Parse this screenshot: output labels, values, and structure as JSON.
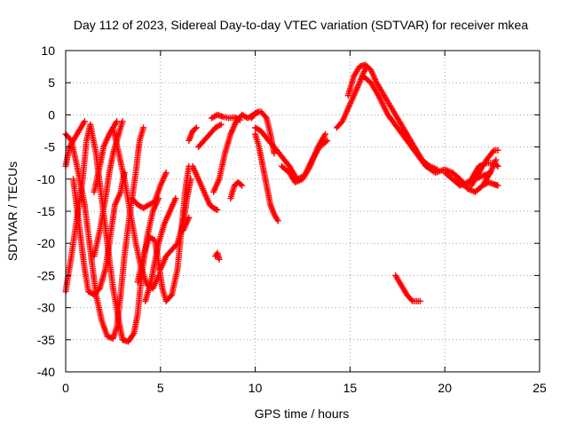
{
  "chart_data": {
    "type": "scatter",
    "title": "Day 112 of 2023, Sidereal Day-to-day VTEC variation (SDTVAR) for receiver mkea",
    "xlabel": "GPS time / hours",
    "ylabel": "SDTVAR / TECUs",
    "xlim": [
      0,
      25
    ],
    "ylim": [
      -40,
      10
    ],
    "xticks": [
      "0",
      "5",
      "10",
      "15",
      "20",
      "25"
    ],
    "yticks": [
      "10",
      "5",
      "0",
      "-5",
      "-10",
      "-15",
      "-20",
      "-25",
      "-30",
      "-35",
      "-40"
    ],
    "grid": true,
    "marker": "+",
    "color": "#ff0000",
    "series": [
      {
        "name": "s1",
        "points": [
          [
            0.0,
            -27.5
          ],
          [
            0.3,
            -22
          ],
          [
            0.6,
            -16
          ],
          [
            0.9,
            -10
          ],
          [
            1.1,
            -4
          ],
          [
            1.3,
            -1.5
          ],
          [
            1.6,
            -6
          ],
          [
            1.9,
            -13
          ],
          [
            2.2,
            -20
          ],
          [
            2.5,
            -27
          ],
          [
            2.8,
            -32
          ],
          [
            3.0,
            -35
          ]
        ]
      },
      {
        "name": "s2",
        "points": [
          [
            0.0,
            -3
          ],
          [
            0.3,
            -4
          ],
          [
            0.6,
            -8
          ],
          [
            1.0,
            -14
          ],
          [
            1.3,
            -21
          ],
          [
            1.6,
            -28
          ],
          [
            1.9,
            -32
          ],
          [
            2.2,
            -34.5
          ],
          [
            2.5,
            -34.8
          ],
          [
            2.7,
            -33
          ],
          [
            2.9,
            -28
          ],
          [
            3.1,
            -22
          ],
          [
            3.4,
            -15
          ],
          [
            3.7,
            -9
          ],
          [
            3.9,
            -4
          ],
          [
            4.1,
            -2
          ]
        ]
      },
      {
        "name": "s3",
        "points": [
          [
            0.0,
            -8
          ],
          [
            0.2,
            -5
          ],
          [
            0.5,
            -3.5
          ],
          [
            0.8,
            -2
          ],
          [
            1.0,
            -1
          ]
        ]
      },
      {
        "name": "s4",
        "points": [
          [
            0.4,
            -10
          ],
          [
            0.7,
            -17
          ],
          [
            1.0,
            -24
          ],
          [
            1.2,
            -27.5
          ],
          [
            1.5,
            -28
          ],
          [
            1.8,
            -27
          ],
          [
            2.1,
            -24
          ],
          [
            2.4,
            -18
          ],
          [
            2.6,
            -14
          ],
          [
            2.9,
            -12
          ],
          [
            3.1,
            -9
          ]
        ]
      },
      {
        "name": "s5",
        "points": [
          [
            1.5,
            -12
          ],
          [
            1.8,
            -8
          ],
          [
            2.0,
            -5
          ],
          [
            2.3,
            -3
          ],
          [
            2.7,
            -1
          ]
        ]
      },
      {
        "name": "s6",
        "points": [
          [
            1.5,
            -22
          ],
          [
            1.8,
            -18
          ],
          [
            2.1,
            -13
          ],
          [
            2.3,
            -9
          ],
          [
            2.5,
            -6
          ],
          [
            2.8,
            -3
          ],
          [
            3.0,
            -1
          ]
        ]
      },
      {
        "name": "s7",
        "points": [
          [
            3.0,
            -35
          ],
          [
            3.3,
            -35.3
          ],
          [
            3.6,
            -34
          ],
          [
            3.8,
            -31
          ],
          [
            4.0,
            -25
          ],
          [
            4.3,
            -19
          ],
          [
            4.6,
            -15
          ],
          [
            4.9,
            -13
          ]
        ]
      },
      {
        "name": "s8",
        "points": [
          [
            3.8,
            -26
          ],
          [
            4.1,
            -22
          ],
          [
            4.4,
            -19
          ],
          [
            4.7,
            -19.5
          ],
          [
            4.9,
            -23
          ],
          [
            5.1,
            -27
          ],
          [
            5.3,
            -29
          ],
          [
            5.6,
            -28
          ],
          [
            5.9,
            -24
          ],
          [
            6.1,
            -18
          ],
          [
            6.3,
            -12
          ],
          [
            6.5,
            -8
          ]
        ]
      },
      {
        "name": "s9",
        "points": [
          [
            2.5,
            -2
          ],
          [
            2.8,
            -6
          ],
          [
            3.1,
            -10
          ],
          [
            3.4,
            -15
          ],
          [
            3.7,
            -20
          ],
          [
            4.0,
            -24
          ],
          [
            4.3,
            -26.5
          ],
          [
            4.6,
            -27
          ],
          [
            4.9,
            -25
          ]
        ]
      },
      {
        "name": "s10",
        "points": [
          [
            3.5,
            -13
          ],
          [
            3.8,
            -14
          ],
          [
            4.1,
            -14.5
          ],
          [
            4.4,
            -14
          ],
          [
            4.7,
            -13.5
          ],
          [
            5.0,
            -11
          ],
          [
            5.3,
            -9
          ]
        ]
      },
      {
        "name": "s11",
        "points": [
          [
            4.2,
            -29
          ],
          [
            4.5,
            -26
          ],
          [
            4.7,
            -23
          ],
          [
            4.9,
            -20
          ],
          [
            5.2,
            -17
          ],
          [
            5.5,
            -15
          ],
          [
            5.8,
            -13
          ]
        ]
      },
      {
        "name": "s12",
        "points": [
          [
            5.0,
            -24
          ],
          [
            5.3,
            -22
          ],
          [
            5.6,
            -21
          ],
          [
            5.9,
            -20
          ],
          [
            6.2,
            -17
          ],
          [
            6.4,
            -13
          ],
          [
            6.6,
            -10
          ]
        ]
      },
      {
        "name": "s13",
        "points": [
          [
            6.5,
            -4
          ],
          [
            6.7,
            -2.5
          ],
          [
            6.9,
            -2
          ]
        ]
      },
      {
        "name": "s14",
        "points": [
          [
            6.2,
            -18
          ],
          [
            6.5,
            -16
          ]
        ]
      },
      {
        "name": "s15",
        "points": [
          [
            7.0,
            -5
          ],
          [
            7.3,
            -4
          ],
          [
            7.6,
            -3
          ],
          [
            7.9,
            -2
          ],
          [
            8.2,
            -1.5
          ]
        ]
      },
      {
        "name": "s16",
        "points": [
          [
            6.7,
            -8
          ],
          [
            7.0,
            -10
          ],
          [
            7.3,
            -12
          ],
          [
            7.6,
            -14
          ],
          [
            7.8,
            -14.5
          ],
          [
            8.0,
            -14.8
          ]
        ]
      },
      {
        "name": "s17",
        "points": [
          [
            7.9,
            -22
          ],
          [
            8.0,
            -21.5
          ],
          [
            8.1,
            -22.5
          ]
        ]
      },
      {
        "name": "s18",
        "points": [
          [
            7.8,
            -12
          ],
          [
            8.1,
            -10
          ],
          [
            8.4,
            -6
          ],
          [
            8.7,
            -3
          ],
          [
            9.0,
            -1
          ],
          [
            9.3,
            0
          ],
          [
            9.6,
            -0.5
          ],
          [
            9.9,
            0
          ],
          [
            10.2,
            0.5
          ]
        ]
      },
      {
        "name": "s19",
        "points": [
          [
            7.7,
            -0.5
          ],
          [
            8.0,
            0
          ],
          [
            8.3,
            -0.3
          ],
          [
            8.6,
            -0.5
          ],
          [
            8.9,
            -0.4
          ],
          [
            9.2,
            -0.8
          ]
        ]
      },
      {
        "name": "s20",
        "points": [
          [
            8.7,
            -13
          ],
          [
            8.9,
            -11
          ],
          [
            9.1,
            -10.5
          ],
          [
            9.3,
            -11
          ]
        ]
      },
      {
        "name": "s21",
        "points": [
          [
            9.8,
            -0.5
          ],
          [
            10.0,
            0.3
          ],
          [
            10.3,
            0.5
          ],
          [
            10.6,
            -0.5
          ],
          [
            10.8,
            -3
          ],
          [
            11.0,
            -6
          ]
        ]
      },
      {
        "name": "s22",
        "points": [
          [
            10.0,
            -3
          ],
          [
            10.2,
            -5
          ],
          [
            10.4,
            -8
          ],
          [
            10.6,
            -11
          ],
          [
            10.8,
            -14
          ],
          [
            11.0,
            -15.5
          ],
          [
            11.2,
            -16.5
          ]
        ]
      },
      {
        "name": "s23",
        "points": [
          [
            10.0,
            -2
          ],
          [
            10.3,
            -2.5
          ],
          [
            10.7,
            -4
          ],
          [
            11.0,
            -5
          ],
          [
            11.4,
            -6.5
          ],
          [
            11.8,
            -8
          ],
          [
            12.2,
            -10
          ],
          [
            12.6,
            -9.5
          ],
          [
            13.0,
            -7
          ],
          [
            13.4,
            -5
          ],
          [
            13.8,
            -4
          ]
        ]
      },
      {
        "name": "s24",
        "points": [
          [
            11.4,
            -8
          ],
          [
            11.8,
            -9
          ],
          [
            12.1,
            -10.5
          ],
          [
            12.5,
            -10
          ],
          [
            12.9,
            -8
          ],
          [
            13.3,
            -5
          ],
          [
            13.7,
            -3
          ]
        ]
      },
      {
        "name": "s25",
        "points": [
          [
            14.3,
            -2
          ],
          [
            14.6,
            -1
          ],
          [
            14.9,
            1
          ],
          [
            15.2,
            3
          ],
          [
            15.5,
            5
          ],
          [
            15.7,
            6.5
          ],
          [
            15.9,
            7.5
          ]
        ]
      },
      {
        "name": "s26",
        "points": [
          [
            14.9,
            3
          ],
          [
            15.2,
            6
          ],
          [
            15.5,
            7.5
          ],
          [
            15.8,
            7.8
          ],
          [
            16.1,
            7
          ],
          [
            16.4,
            5
          ],
          [
            16.8,
            3
          ],
          [
            17.2,
            1
          ],
          [
            17.6,
            -1
          ],
          [
            18.0,
            -3
          ],
          [
            18.4,
            -5
          ],
          [
            18.8,
            -7
          ],
          [
            19.2,
            -8
          ],
          [
            19.6,
            -8.5
          ]
        ]
      },
      {
        "name": "s27",
        "points": [
          [
            15.7,
            6
          ],
          [
            16.1,
            5
          ],
          [
            16.5,
            3
          ],
          [
            17.0,
            0
          ],
          [
            17.5,
            -2
          ],
          [
            18.0,
            -4
          ],
          [
            18.5,
            -6
          ],
          [
            19.0,
            -8
          ],
          [
            19.5,
            -9
          ],
          [
            20.0,
            -8.5
          ],
          [
            20.4,
            -9
          ],
          [
            20.8,
            -10
          ],
          [
            21.2,
            -11.5
          ],
          [
            21.6,
            -12
          ],
          [
            22.0,
            -11
          ],
          [
            22.4,
            -9
          ],
          [
            22.7,
            -7
          ]
        ]
      },
      {
        "name": "s28",
        "points": [
          [
            17.4,
            -25
          ],
          [
            17.7,
            -26.5
          ],
          [
            18.0,
            -28
          ],
          [
            18.3,
            -29
          ],
          [
            18.7,
            -29
          ]
        ]
      },
      {
        "name": "s29",
        "points": [
          [
            20.0,
            -9
          ],
          [
            20.4,
            -10
          ],
          [
            20.8,
            -11
          ],
          [
            21.2,
            -10.5
          ],
          [
            21.6,
            -10
          ],
          [
            22.0,
            -9.5
          ],
          [
            22.4,
            -9
          ]
        ]
      },
      {
        "name": "s30",
        "points": [
          [
            20.6,
            -10
          ],
          [
            21.0,
            -11
          ],
          [
            21.4,
            -11
          ],
          [
            21.8,
            -9
          ],
          [
            22.2,
            -7
          ],
          [
            22.6,
            -5.5
          ],
          [
            22.8,
            -5.5
          ]
        ]
      },
      {
        "name": "s31",
        "points": [
          [
            21.4,
            -10
          ],
          [
            21.8,
            -8
          ],
          [
            22.2,
            -7.5
          ],
          [
            22.6,
            -7.5
          ],
          [
            22.8,
            -8
          ]
        ]
      },
      {
        "name": "s32",
        "points": [
          [
            22.0,
            -11
          ],
          [
            22.3,
            -10.5
          ],
          [
            22.6,
            -10.8
          ],
          [
            22.8,
            -11
          ]
        ]
      }
    ]
  }
}
